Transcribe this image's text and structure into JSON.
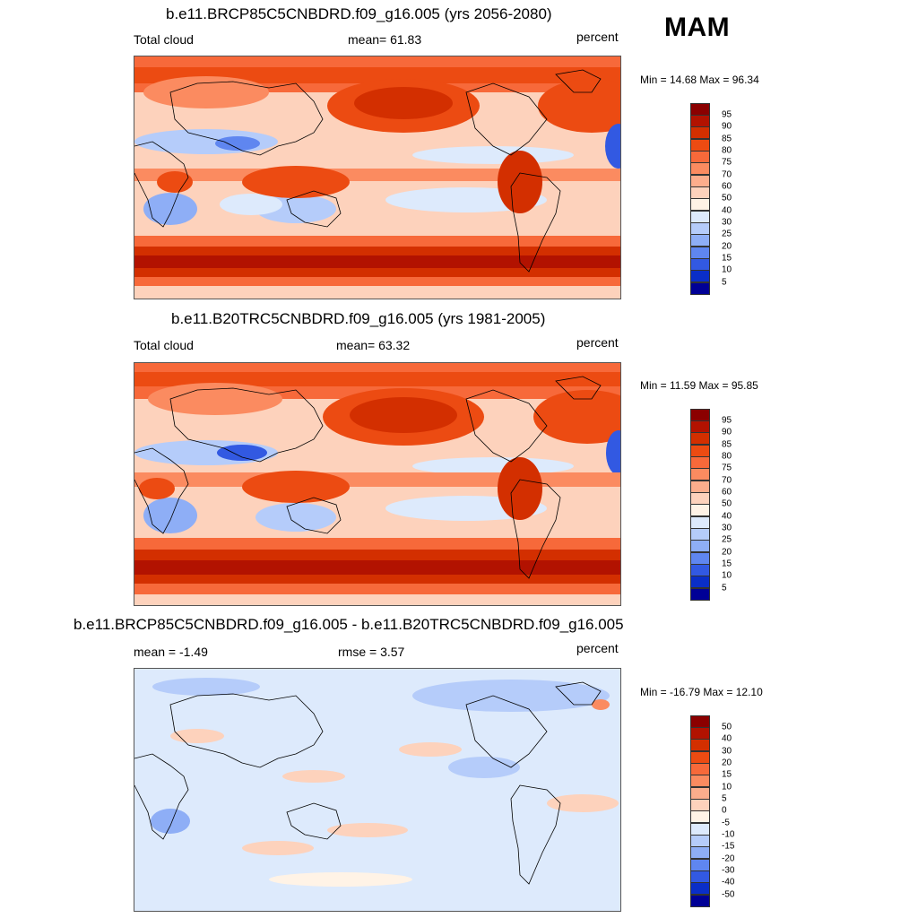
{
  "season": "MAM",
  "panels": [
    {
      "title": "b.e11.BRCP85C5CNBDRD.f09_g16.005 (yrs 2056-2080)",
      "left_label": "Total cloud",
      "center_label": "mean=  61.83",
      "units": "percent",
      "minmax": "Min =  14.68 Max =  96.34",
      "cbar_labels": [
        "95",
        "90",
        "85",
        "80",
        "75",
        "70",
        "60",
        "50",
        "40",
        "30",
        "25",
        "20",
        "15",
        "10",
        "5"
      ],
      "palette": [
        "#8b0000",
        "#b21200",
        "#d32f00",
        "#ec4b12",
        "#f7693a",
        "#fb8b60",
        "#fcad8c",
        "#fdd2bc",
        "#fff3e6",
        "#ddeafc",
        "#b5ccfa",
        "#8eaef6",
        "#5f86f0",
        "#3259e2",
        "#0a2ec8",
        "#000096"
      ]
    },
    {
      "title": "b.e11.B20TRC5CNBDRD.f09_g16.005 (yrs 1981-2005)",
      "left_label": "Total cloud",
      "center_label": "mean=  63.32",
      "units": "percent",
      "minmax": "Min =  11.59 Max =  95.85",
      "cbar_labels": [
        "95",
        "90",
        "85",
        "80",
        "75",
        "70",
        "60",
        "50",
        "40",
        "30",
        "25",
        "20",
        "15",
        "10",
        "5"
      ],
      "palette": [
        "#8b0000",
        "#b21200",
        "#d32f00",
        "#ec4b12",
        "#f7693a",
        "#fb8b60",
        "#fcad8c",
        "#fdd2bc",
        "#fff3e6",
        "#ddeafc",
        "#b5ccfa",
        "#8eaef6",
        "#5f86f0",
        "#3259e2",
        "#0a2ec8",
        "#000096"
      ]
    },
    {
      "title": "b.e11.BRCP85C5CNBDRD.f09_g16.005 - b.e11.B20TRC5CNBDRD.f09_g16.005",
      "left_label": "mean =  -1.49",
      "center_label": "rmse =   3.57",
      "units": "percent",
      "minmax": "Min = -16.79 Max =  12.10",
      "cbar_labels": [
        "50",
        "40",
        "30",
        "20",
        "15",
        "10",
        "5",
        "0",
        "-5",
        "-10",
        "-15",
        "-20",
        "-30",
        "-40",
        "-50"
      ],
      "palette": [
        "#8b0000",
        "#b21200",
        "#d32f00",
        "#ec4b12",
        "#f7693a",
        "#fb8b60",
        "#fcad8c",
        "#fdd2bc",
        "#fff3e6",
        "#ddeafc",
        "#b5ccfa",
        "#8eaef6",
        "#5f86f0",
        "#3259e2",
        "#0a2ec8",
        "#000096"
      ]
    }
  ]
}
